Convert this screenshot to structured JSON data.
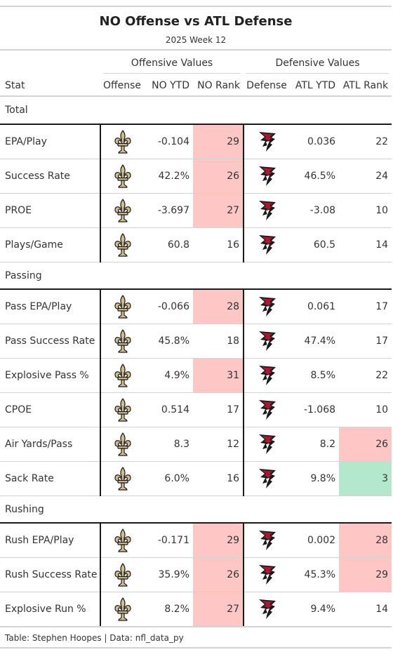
{
  "title": "NO Offense vs ATL Defense",
  "subtitle": "2025 Week 12",
  "spanners": {
    "offense": "Offensive Values",
    "defense": "Defensive Values"
  },
  "columns": {
    "stat": "Stat",
    "offense": "Offense",
    "no_ytd": "NO YTD",
    "no_rank": "NO Rank",
    "defense": "Defense",
    "atl_ytd": "ATL YTD",
    "atl_rank": "ATL Rank"
  },
  "colors": {
    "bad_rank": "#ffc6c6",
    "good_rank": "#b4e8cc",
    "saints_gold": "#d3bc8d",
    "falcons_red": "#a71930"
  },
  "icons": {
    "offense_logo": "saints-fleur-de-lis-icon",
    "defense_logo": "falcons-logo-icon"
  },
  "groups": [
    {
      "name": "Total",
      "rows": [
        {
          "stat": "EPA/Play",
          "no_ytd": "-0.104",
          "no_rank": "29",
          "no_rank_status": "bad",
          "atl_ytd": "0.036",
          "atl_rank": "22",
          "atl_rank_status": ""
        },
        {
          "stat": "Success Rate",
          "no_ytd": "42.2%",
          "no_rank": "26",
          "no_rank_status": "bad",
          "atl_ytd": "46.5%",
          "atl_rank": "24",
          "atl_rank_status": ""
        },
        {
          "stat": "PROE",
          "no_ytd": "-3.697",
          "no_rank": "27",
          "no_rank_status": "bad",
          "atl_ytd": "-3.08",
          "atl_rank": "10",
          "atl_rank_status": ""
        },
        {
          "stat": "Plays/Game",
          "no_ytd": "60.8",
          "no_rank": "16",
          "no_rank_status": "",
          "atl_ytd": "60.5",
          "atl_rank": "14",
          "atl_rank_status": ""
        }
      ]
    },
    {
      "name": "Passing",
      "rows": [
        {
          "stat": "Pass EPA/Play",
          "no_ytd": "-0.066",
          "no_rank": "28",
          "no_rank_status": "bad",
          "atl_ytd": "0.061",
          "atl_rank": "17",
          "atl_rank_status": ""
        },
        {
          "stat": "Pass Success Rate",
          "no_ytd": "45.8%",
          "no_rank": "18",
          "no_rank_status": "",
          "atl_ytd": "47.4%",
          "atl_rank": "17",
          "atl_rank_status": ""
        },
        {
          "stat": "Explosive Pass %",
          "no_ytd": "4.9%",
          "no_rank": "31",
          "no_rank_status": "bad",
          "atl_ytd": "8.5%",
          "atl_rank": "22",
          "atl_rank_status": ""
        },
        {
          "stat": "CPOE",
          "no_ytd": "0.514",
          "no_rank": "17",
          "no_rank_status": "",
          "atl_ytd": "-1.068",
          "atl_rank": "10",
          "atl_rank_status": ""
        },
        {
          "stat": "Air Yards/Pass",
          "no_ytd": "8.3",
          "no_rank": "12",
          "no_rank_status": "",
          "atl_ytd": "8.2",
          "atl_rank": "26",
          "atl_rank_status": "bad"
        },
        {
          "stat": "Sack Rate",
          "no_ytd": "6.0%",
          "no_rank": "16",
          "no_rank_status": "",
          "atl_ytd": "9.8%",
          "atl_rank": "3",
          "atl_rank_status": "good"
        }
      ]
    },
    {
      "name": "Rushing",
      "rows": [
        {
          "stat": "Rush EPA/Play",
          "no_ytd": "-0.171",
          "no_rank": "29",
          "no_rank_status": "bad",
          "atl_ytd": "0.002",
          "atl_rank": "28",
          "atl_rank_status": "bad"
        },
        {
          "stat": "Rush Success Rate",
          "no_ytd": "35.9%",
          "no_rank": "26",
          "no_rank_status": "bad",
          "atl_ytd": "45.3%",
          "atl_rank": "29",
          "atl_rank_status": "bad"
        },
        {
          "stat": "Explosive Run %",
          "no_ytd": "8.2%",
          "no_rank": "27",
          "no_rank_status": "bad",
          "atl_ytd": "9.4%",
          "atl_rank": "14",
          "atl_rank_status": ""
        }
      ]
    }
  ],
  "footer": "Table: Stephen Hoopes | Data: nfl_data_py"
}
